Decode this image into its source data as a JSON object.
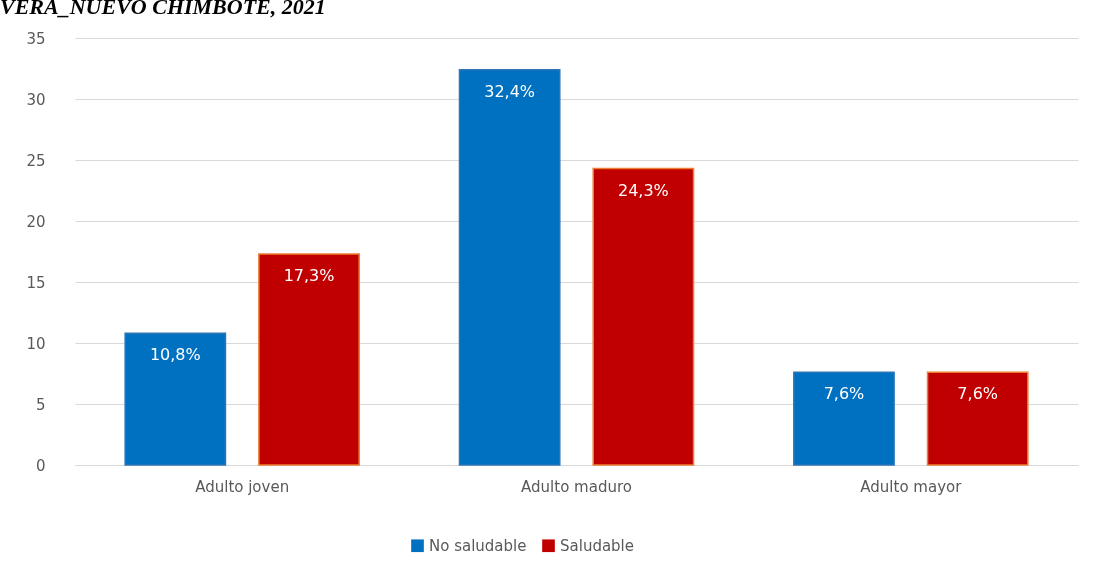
{
  "chart_data": {
    "type": "bar",
    "title": "VERA_NUEVO CHIMBOTE, 2021",
    "categories": [
      "Adulto joven",
      "Adulto maduro",
      "Adulto mayor"
    ],
    "series": [
      {
        "name": "No saludable",
        "color": "#0070c0",
        "values": [
          10.8,
          32.4,
          7.6
        ],
        "value_labels": [
          "10,8%",
          "32,4%",
          "7,6%"
        ]
      },
      {
        "name": "Saludable",
        "color": "#c00000",
        "values": [
          17.3,
          24.3,
          7.6
        ],
        "value_labels": [
          "17,3%",
          "24,3%",
          "7,6%"
        ]
      }
    ],
    "ylim": [
      0,
      35
    ],
    "yticks": [
      0,
      5,
      10,
      15,
      20,
      25,
      30,
      35
    ],
    "grid": "y",
    "legend": "bottom"
  }
}
